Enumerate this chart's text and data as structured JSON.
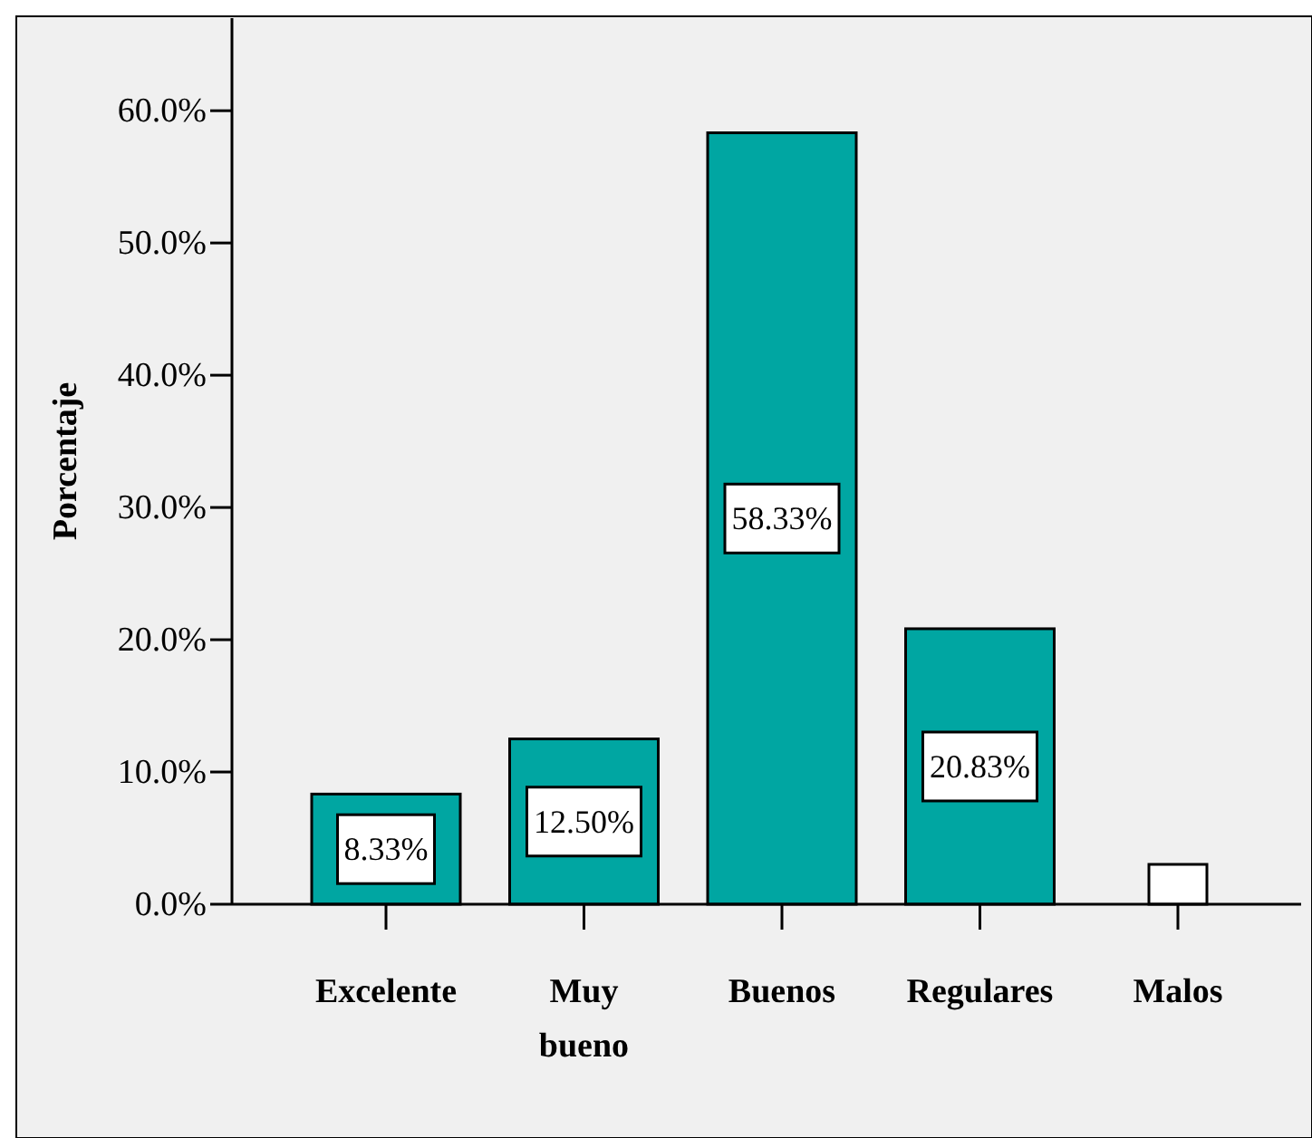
{
  "chart_data": {
    "type": "bar",
    "ylabel": "Porcentaje",
    "categories": [
      "Excelente",
      "Muy bueno",
      "Buenos",
      "Regulares",
      "Malos"
    ],
    "values": [
      8.33,
      12.5,
      58.33,
      20.83,
      0
    ],
    "value_labels": [
      "8.33%",
      "12.50%",
      "58.33%",
      "20.83%",
      null
    ],
    "color": "#00a6a2",
    "ylim": [
      0,
      67
    ],
    "yticks": [
      {
        "value": 0,
        "label": "0.0%"
      },
      {
        "value": 10,
        "label": "10.0%"
      },
      {
        "value": 20,
        "label": "20.0%"
      },
      {
        "value": 30,
        "label": "30.0%"
      },
      {
        "value": 40,
        "label": "40.0%"
      },
      {
        "value": 50,
        "label": "50.0%"
      },
      {
        "value": 60,
        "label": "60.0%"
      }
    ],
    "grid": false
  }
}
